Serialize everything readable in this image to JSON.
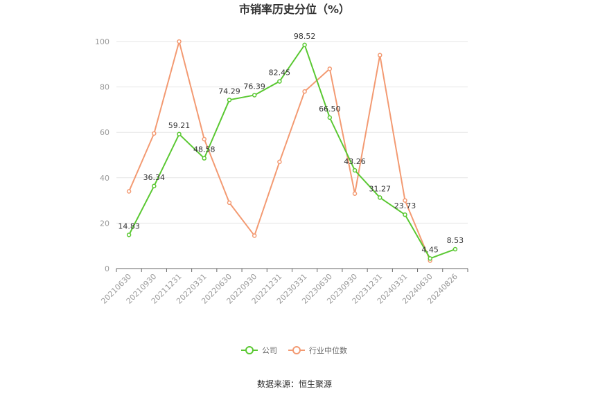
{
  "chart_data": {
    "type": "line",
    "title": "市销率历史分位（%）",
    "categories": [
      "20210630",
      "20210930",
      "20211231",
      "20220331",
      "20220630",
      "20220930",
      "20221231",
      "20230331",
      "20230630",
      "20230930",
      "20231231",
      "20240331",
      "20240630",
      "20240826"
    ],
    "series": [
      {
        "name": "公司",
        "color": "#5ac832",
        "values": [
          14.83,
          36.34,
          59.21,
          48.58,
          74.29,
          76.39,
          82.45,
          98.52,
          66.5,
          43.26,
          31.27,
          23.73,
          4.45,
          8.53
        ],
        "labels": [
          "14.83",
          "36.34",
          "59.21",
          "48.58",
          "74.29",
          "76.39",
          "82.45",
          "98.52",
          "66.50",
          "43.26",
          "31.27",
          "23.73",
          "4.45",
          "8.53"
        ]
      },
      {
        "name": "行业中位数",
        "color": "#f39a72",
        "values": [
          34,
          59.5,
          100,
          57,
          29,
          14.5,
          47,
          78,
          88,
          33,
          94,
          30,
          3.5,
          null
        ]
      }
    ],
    "ylim": [
      0,
      100
    ],
    "yticks": [
      0,
      20,
      40,
      60,
      80,
      100
    ],
    "grid": true,
    "legend_position": "bottom"
  },
  "source": "数据来源：恒生聚源"
}
